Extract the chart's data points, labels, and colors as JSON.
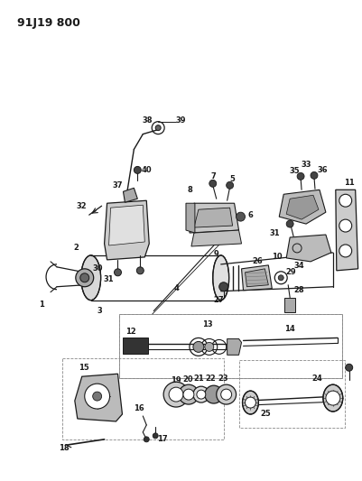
{
  "title": "91J19 800",
  "bg_color": "#ffffff",
  "line_color": "#1a1a1a",
  "fig_width": 4.02,
  "fig_height": 5.33,
  "dpi": 100
}
